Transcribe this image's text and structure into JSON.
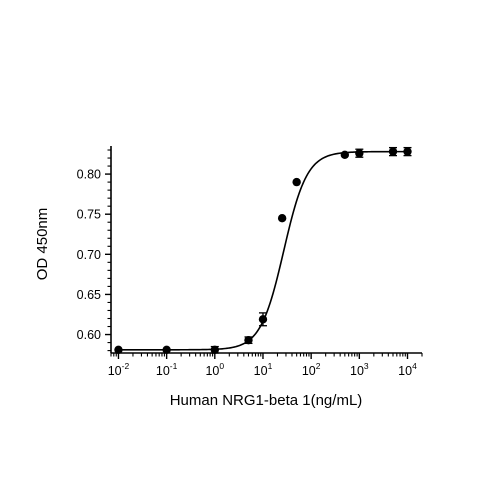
{
  "chart_data": {
    "type": "scatter",
    "xlabel": "Human NRG1-beta 1(ng/mL)",
    "ylabel": "OD 450nm",
    "x_scale": "log",
    "xlim": [
      0.007,
      20000
    ],
    "ylim": [
      0.577,
      0.835
    ],
    "x_ticks": [
      {
        "base": "10",
        "exp": "-2",
        "value": 0.01
      },
      {
        "base": "10",
        "exp": "-1",
        "value": 0.1
      },
      {
        "base": "10",
        "exp": "0",
        "value": 1
      },
      {
        "base": "10",
        "exp": "1",
        "value": 10
      },
      {
        "base": "10",
        "exp": "2",
        "value": 100
      },
      {
        "base": "10",
        "exp": "3",
        "value": 1000
      },
      {
        "base": "10",
        "exp": "4",
        "value": 10000
      }
    ],
    "y_ticks": [
      {
        "label": "0.60",
        "value": 0.6
      },
      {
        "label": "0.65",
        "value": 0.65
      },
      {
        "label": "0.70",
        "value": 0.7
      },
      {
        "label": "0.75",
        "value": 0.75
      },
      {
        "label": "0.80",
        "value": 0.8
      }
    ],
    "points": [
      {
        "x": 0.01,
        "y": 0.581,
        "err": 0
      },
      {
        "x": 0.1,
        "y": 0.581,
        "err": 0
      },
      {
        "x": 1,
        "y": 0.581,
        "err": 0.004
      },
      {
        "x": 5,
        "y": 0.593,
        "err": 0.004
      },
      {
        "x": 10,
        "y": 0.619,
        "err": 0.008
      },
      {
        "x": 25,
        "y": 0.745,
        "err": 0
      },
      {
        "x": 50,
        "y": 0.79,
        "err": 0
      },
      {
        "x": 500,
        "y": 0.824,
        "err": 0
      },
      {
        "x": 1000,
        "y": 0.826,
        "err": 0.005
      },
      {
        "x": 5000,
        "y": 0.828,
        "err": 0.005
      },
      {
        "x": 10000,
        "y": 0.828,
        "err": 0.005
      }
    ],
    "fit_curve": {
      "model": "4PL",
      "bottom": 0.581,
      "top": 0.828,
      "ec50": 27,
      "hill": 1.8
    },
    "grid": false,
    "legend": "none",
    "color": "#000000"
  }
}
